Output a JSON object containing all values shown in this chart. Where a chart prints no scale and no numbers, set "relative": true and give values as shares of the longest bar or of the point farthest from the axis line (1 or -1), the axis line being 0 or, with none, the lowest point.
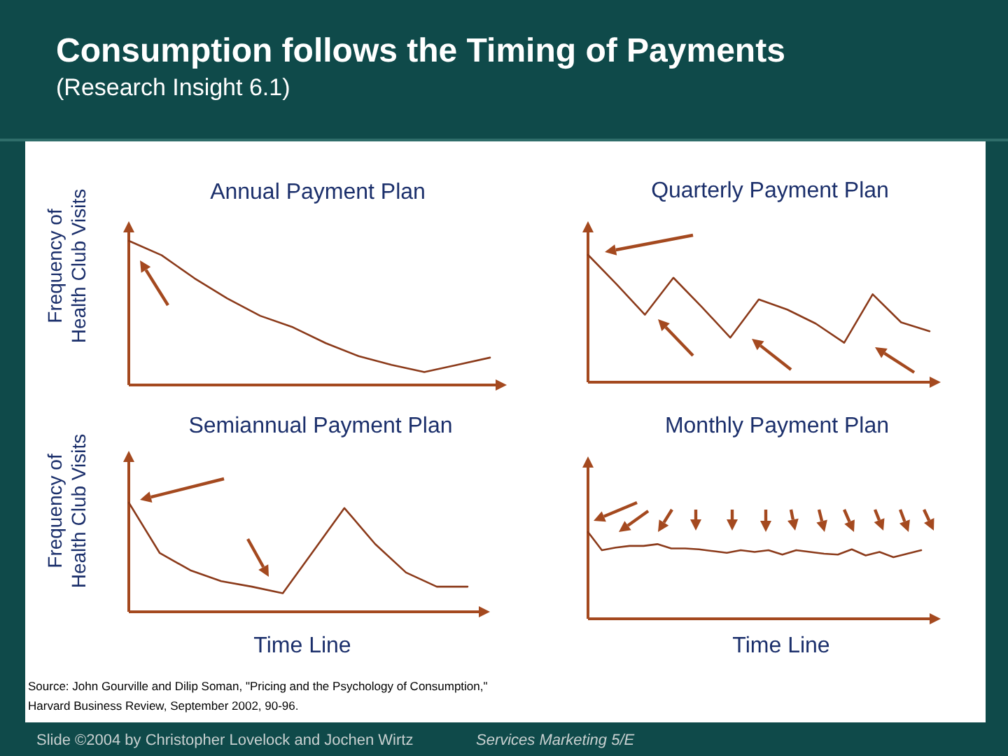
{
  "chart_data": [
    {
      "type": "other",
      "title": "Consumption follows the Timing of Payments",
      "subtitle": "(Research Insight 6.1)",
      "annotations": [
        "Source: John Gourville and Dilip Soman, \"Pricing and the Psychology of Consumption,\"",
        "Harvard Business Review, September 2002, 90-96.",
        "Slide ©2004  by Christopher Lovelock and Jochen Wirtz",
        "Services Marketing 5/E"
      ]
    },
    {
      "type": "line",
      "title": "Annual Payment Plan",
      "ylabel": "Frequency of Health Club Visits",
      "relative": true,
      "color": "#8b3a1a",
      "categories": [
        null,
        null,
        null,
        null,
        null,
        null,
        null,
        null,
        null,
        null,
        null,
        null
      ],
      "values": [
        1,
        0.9,
        0.74,
        0.6,
        0.48,
        0.4,
        0.29,
        0.2,
        0.14,
        0.09,
        0.14,
        0.19
      ]
    },
    {
      "type": "line",
      "title": "Quarterly Payment Plan",
      "relative": true,
      "color": "#8b3a1a",
      "categories": [
        null,
        null,
        null,
        null,
        null,
        null,
        null,
        null,
        null,
        null,
        null,
        null,
        null
      ],
      "values": [
        1,
        0.77,
        0.53,
        0.82,
        0.59,
        0.35,
        0.65,
        0.57,
        0.46,
        0.31,
        0.69,
        0.47,
        0.4
      ]
    },
    {
      "type": "line",
      "title": "Semiannual Payment Plan",
      "ylabel": "Frequency of Health Club Visits",
      "xlabel": "Time Line",
      "relative": true,
      "color": "#8b3a1a",
      "categories": [
        null,
        null,
        null,
        null,
        null,
        null,
        null,
        null,
        null,
        null,
        null,
        null
      ],
      "values": [
        1,
        0.54,
        0.38,
        0.28,
        0.23,
        0.17,
        0.56,
        0.95,
        0.62,
        0.36,
        0.23,
        0.23
      ]
    },
    {
      "type": "line",
      "title": "Monthly Payment Plan",
      "xlabel": "Time Line",
      "relative": true,
      "color": "#8b3a1a",
      "categories": [
        null,
        null,
        null,
        null,
        null,
        null,
        null,
        null,
        null,
        null,
        null,
        null,
        null,
        null,
        null,
        null,
        null,
        null,
        null,
        null,
        null,
        null,
        null,
        null,
        null
      ],
      "values": [
        1,
        0.79,
        0.82,
        0.84,
        0.84,
        0.86,
        0.81,
        0.81,
        0.8,
        0.78,
        0.76,
        0.79,
        0.77,
        0.79,
        0.74,
        0.79,
        0.77,
        0.75,
        0.74,
        0.8,
        0.73,
        0.77,
        0.71,
        0.75,
        0.79
      ]
    }
  ]
}
